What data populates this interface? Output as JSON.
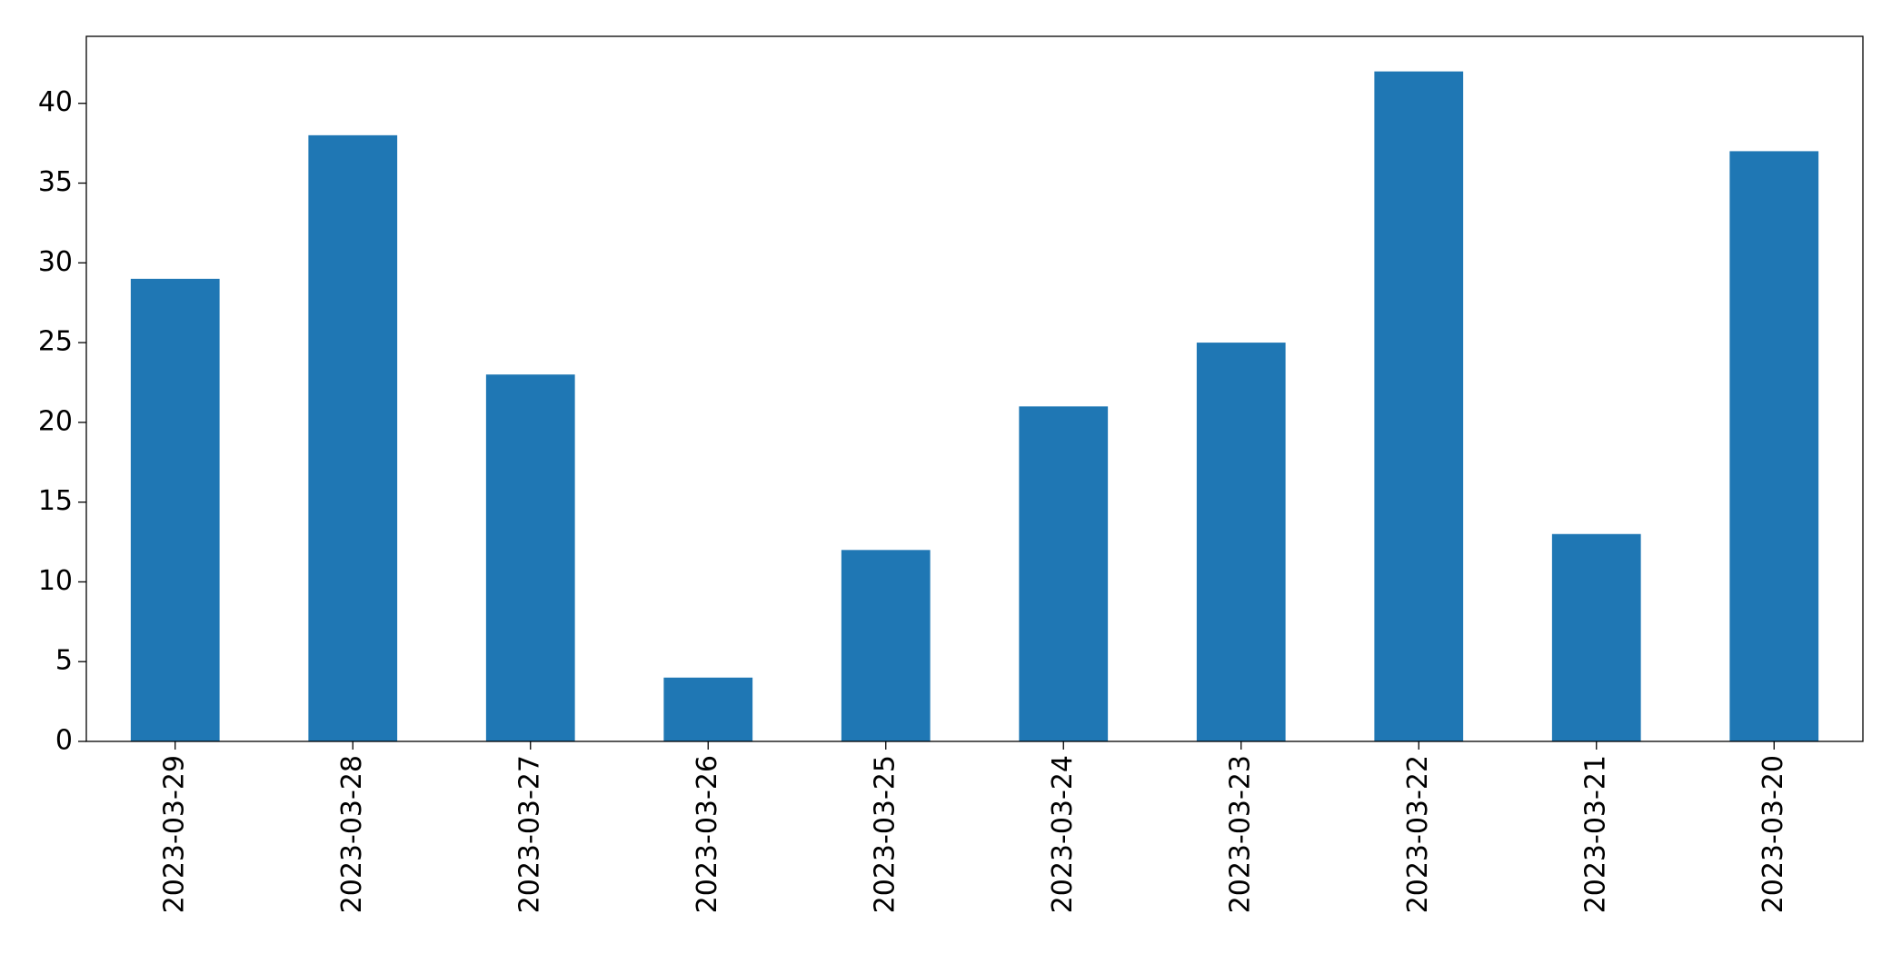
{
  "chart_data": {
    "type": "bar",
    "categories": [
      "2023-03-29",
      "2023-03-28",
      "2023-03-27",
      "2023-03-26",
      "2023-03-25",
      "2023-03-24",
      "2023-03-23",
      "2023-03-22",
      "2023-03-21",
      "2023-03-20"
    ],
    "values": [
      29,
      38,
      23,
      4,
      12,
      21,
      25,
      42,
      13,
      37
    ],
    "color": "#1f77b4",
    "ylim": [
      0,
      44.2
    ],
    "yticks": [
      0,
      5,
      10,
      15,
      20,
      25,
      30,
      35,
      40
    ],
    "grid": false
  }
}
